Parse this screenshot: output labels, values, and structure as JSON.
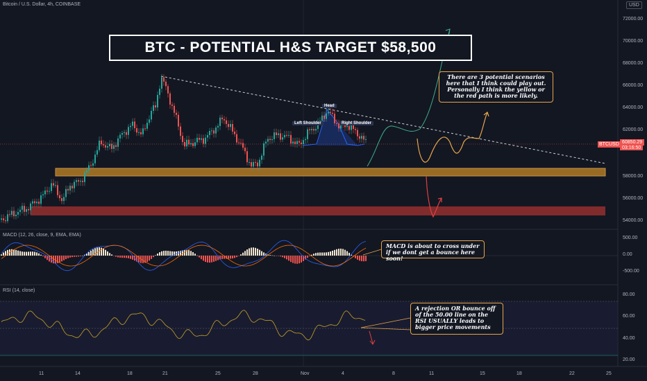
{
  "header": {
    "symbol_description": "Bitcoin / U.S. Dollar, 4h, COINBASE",
    "currency": "USD"
  },
  "title": "BTC - POTENTIAL H&S TARGET  $58,500",
  "pattern_labels": {
    "head": "Head",
    "left_shoulder": "Left Shoulder",
    "right_shoulder": "Right Shoulder"
  },
  "notes": {
    "scenarios": "There are 3 potential scenarios here that I think could play out. Personally I think the yellow or the red path is more likely.",
    "macd": "MACD is about to cross under if we dont get a bounce here soon!",
    "rsi": "A rejection OR bounce off of the 50.00 line on the RSI USUALLY leads to bigger price movements"
  },
  "price_tag": {
    "symbol": "BTCUSD",
    "price": "60850.29",
    "countdown": "03:16:50"
  },
  "price_axis": [
    "72000.00",
    "70000.00",
    "68000.00",
    "66000.00",
    "64000.00",
    "62000.00",
    "58000.00",
    "56000.00",
    "54000.00"
  ],
  "macd": {
    "label": "MACD (12, 26, close, 9, EMA, EMA)",
    "axis": [
      "500.00",
      "0.00",
      "-500.00"
    ]
  },
  "rsi": {
    "label": "RSI (14, close)",
    "axis": [
      "80.00",
      "60.00",
      "40.00",
      "20.00"
    ]
  },
  "time_axis": [
    "11",
    "14",
    "18",
    "21",
    "25",
    "28",
    "Nov",
    "4",
    "8",
    "11",
    "15",
    "18",
    "22",
    "25"
  ],
  "colors": {
    "background": "#131722",
    "up": "#26a69a",
    "down": "#ef5350",
    "support_zone": "#c88a2a",
    "target_zone": "#b03a3a",
    "note_border": "#e8a64a",
    "green_path": "#3fae8a",
    "yellow_path": "#e8a64a",
    "red_path": "#e04040",
    "rsi_line": "#c9a227"
  },
  "chart_data": {
    "type": "candlestick",
    "title": "BTC - POTENTIAL H&S TARGET  $58,500",
    "timeframe": "4h",
    "last_price": 60850.29,
    "ylim": [
      53500,
      73000
    ],
    "zones": {
      "support": [
        58000,
        58700
      ],
      "target": [
        54600,
        55400
      ]
    },
    "hs_target": 58500,
    "pattern_points": {
      "left_shoulder": 62300,
      "head": 64300,
      "right_shoulder": 62300
    }
  }
}
